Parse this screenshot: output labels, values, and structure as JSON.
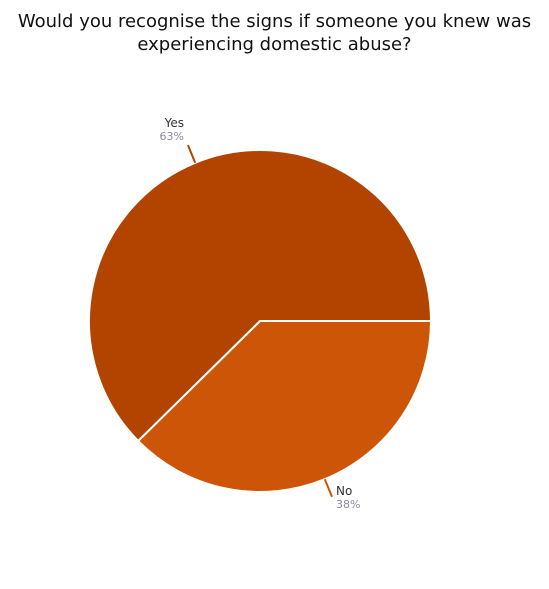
{
  "chart_data": {
    "type": "pie",
    "title": "Would you recognise the signs if someone you knew was experiencing domestic abuse?",
    "categories": [
      "Yes",
      "No"
    ],
    "values": [
      63,
      38
    ],
    "value_labels": [
      "63%",
      "38%"
    ],
    "colors": [
      "#b34400",
      "#cc5508"
    ]
  }
}
